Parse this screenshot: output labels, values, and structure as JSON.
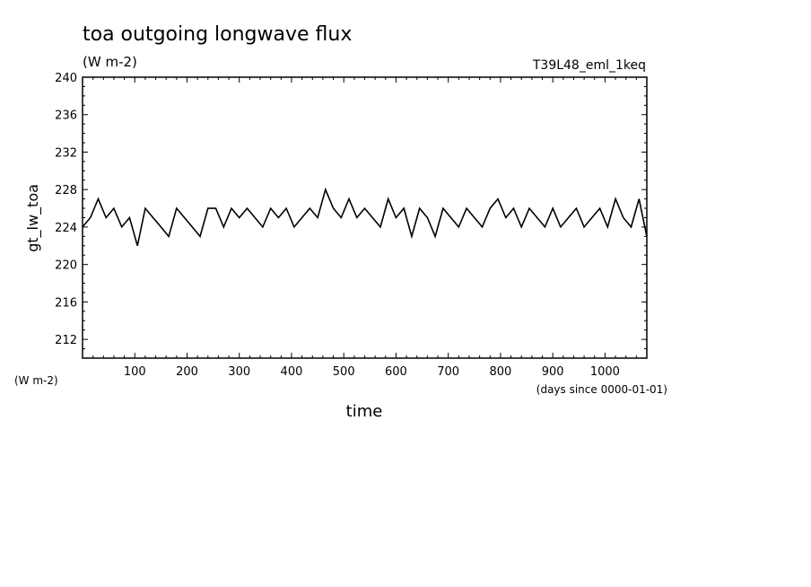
{
  "chart_data": {
    "type": "line",
    "title": "toa outgoing longwave flux",
    "units": "(W m-2)",
    "run_label": "T39L48_eml_1keq",
    "xlabel": "time",
    "xunits": "(days since 0000-01-01)",
    "ylabel": "gt_lw_toa",
    "yunits_lower": "(W m-2)",
    "xlim": [
      0,
      1080
    ],
    "ylim": [
      210,
      240
    ],
    "xticks": [
      "100",
      "200",
      "300",
      "400",
      "500",
      "600",
      "700",
      "800",
      "900",
      "1000"
    ],
    "yticks": [
      "212",
      "216",
      "220",
      "224",
      "228",
      "232",
      "236",
      "240"
    ],
    "series": [
      {
        "x": [
          0,
          15,
          30,
          45,
          60,
          75,
          90,
          105,
          120,
          135,
          150,
          165,
          180,
          195,
          210,
          225,
          240,
          255,
          270,
          285,
          300,
          315,
          330,
          345,
          360,
          375,
          390,
          405,
          420,
          435,
          450,
          465,
          480,
          495,
          510,
          525,
          540,
          555,
          570,
          585,
          600,
          615,
          630,
          645,
          660,
          675,
          690,
          705,
          720,
          735,
          750,
          765,
          780,
          795,
          810,
          825,
          840,
          855,
          870,
          885,
          900,
          915,
          930,
          945,
          960,
          975,
          990,
          1005,
          1020,
          1035,
          1050,
          1065,
          1080
        ],
        "y": [
          224,
          225,
          227,
          225,
          226,
          224,
          225,
          222,
          226,
          225,
          224,
          223,
          226,
          225,
          224,
          223,
          226,
          226,
          224,
          226,
          225,
          226,
          225,
          224,
          226,
          225,
          226,
          224,
          225,
          226,
          225,
          228,
          226,
          225,
          227,
          225,
          226,
          225,
          224,
          227,
          225,
          226,
          223,
          226,
          225,
          223,
          226,
          225,
          224,
          226,
          225,
          224,
          226,
          227,
          225,
          226,
          224,
          226,
          225,
          224,
          226,
          224,
          225,
          226,
          224,
          225,
          226,
          224,
          227,
          225,
          224,
          227,
          223
        ]
      }
    ]
  }
}
